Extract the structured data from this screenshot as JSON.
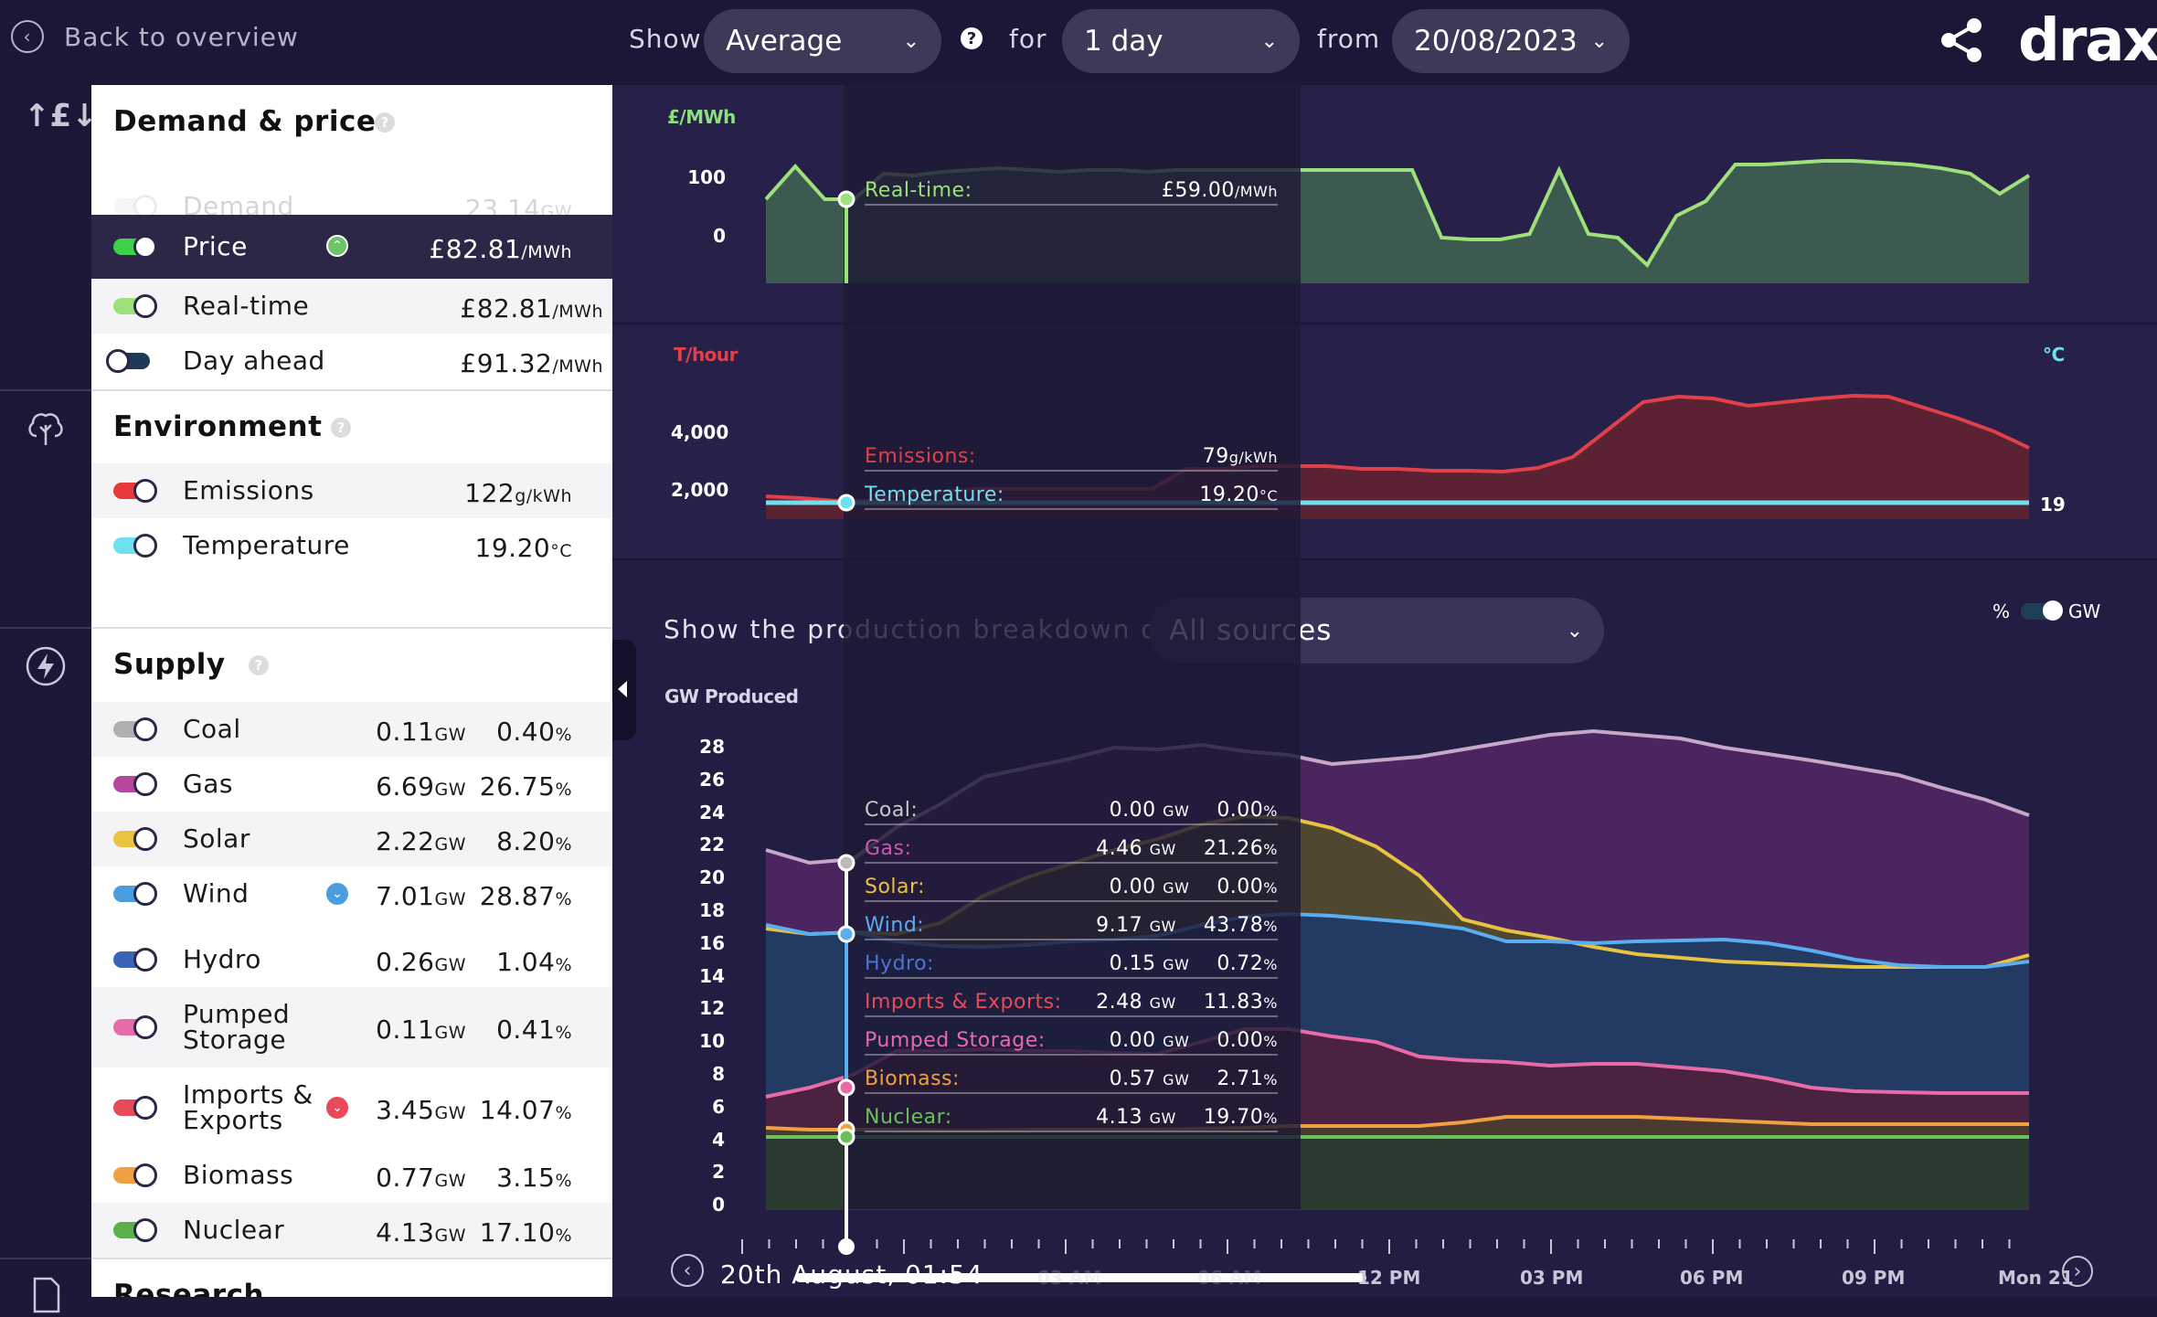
{
  "topbar": {
    "back_label": "Back to overview",
    "show_label": "Show",
    "show_value": "Average",
    "for_label": "for",
    "for_value": "1 day",
    "from_label": "from",
    "from_value": "20/08/2023",
    "logo": "drax"
  },
  "demand_price": {
    "title": "Demand & price",
    "rows": [
      {
        "label": "Demand",
        "value": "23.14",
        "unit": "GW"
      },
      {
        "label": "Price",
        "value": "£82.81",
        "unit": "/MWh"
      },
      {
        "label": "Real-time",
        "value": "£82.81",
        "unit": "/MWh"
      },
      {
        "label": "Day ahead",
        "value": "£91.32",
        "unit": "/MWh"
      }
    ]
  },
  "environment": {
    "title": "Environment",
    "rows": [
      {
        "label": "Emissions",
        "value": "122",
        "unit": "g/kWh"
      },
      {
        "label": "Temperature",
        "value": "19.20",
        "unit": "°C"
      }
    ]
  },
  "supply": {
    "title": "Supply",
    "rows": [
      {
        "label": "Coal",
        "gw": "0.11",
        "pct": "0.40",
        "color": "#b0b0b0"
      },
      {
        "label": "Gas",
        "gw": "6.69",
        "pct": "26.75",
        "color": "#b6469e"
      },
      {
        "label": "Solar",
        "gw": "2.22",
        "pct": "8.20",
        "color": "#e8c240"
      },
      {
        "label": "Wind",
        "gw": "7.01",
        "pct": "28.87",
        "color": "#4a9ee0"
      },
      {
        "label": "Hydro",
        "gw": "0.26",
        "pct": "1.04",
        "color": "#3a64b8"
      },
      {
        "label": "Pumped",
        "label2": "Storage",
        "gw": "0.11",
        "pct": "0.41",
        "color": "#e86aa8"
      },
      {
        "label": "Imports &",
        "label2": "Exports",
        "gw": "3.45",
        "pct": "14.07",
        "color": "#e84a5a"
      },
      {
        "label": "Biomass",
        "gw": "0.77",
        "pct": "3.15",
        "color": "#f0a040"
      },
      {
        "label": "Nuclear",
        "gw": "4.13",
        "pct": "17.10",
        "color": "#5ab04a"
      }
    ],
    "unit_gw": "GW",
    "unit_pct": "%"
  },
  "research_title": "Research",
  "price_chart": {
    "unit": "£/MWh",
    "ticks": [
      "100",
      "0"
    ],
    "tooltip_label": "Real-time:",
    "tooltip_value": "£59.00",
    "tooltip_unit": "/MWh"
  },
  "env_chart": {
    "unit_left": "T/hour",
    "unit_right": "°C",
    "ticks": [
      "4,000",
      "2,000"
    ],
    "right_tick": "19",
    "tooltips": [
      {
        "label": "Emissions:",
        "value": "79",
        "unit": "g/kWh",
        "color": "#e0404a"
      },
      {
        "label": "Temperature:",
        "value": "19.20",
        "unit": "°C",
        "color": "#6fe0ef"
      }
    ]
  },
  "supply_chart": {
    "breakdown_label": "Show the production breakdown of",
    "source_value": "All sources",
    "toggle_pct": "%",
    "toggle_gw": "GW",
    "unit": "GW Produced",
    "ticks": [
      "28",
      "26",
      "24",
      "22",
      "20",
      "18",
      "16",
      "14",
      "12",
      "10",
      "8",
      "6",
      "4",
      "2",
      "0"
    ],
    "tooltips": [
      {
        "label": "Coal:",
        "gw": "0.00",
        "pct": "0.00",
        "color": "#c8c8c8"
      },
      {
        "label": "Gas:",
        "gw": "4.46",
        "pct": "21.26",
        "color": "#c65aae"
      },
      {
        "label": "Solar:",
        "gw": "0.00",
        "pct": "0.00",
        "color": "#e8c240"
      },
      {
        "label": "Wind:",
        "gw": "9.17",
        "pct": "43.78",
        "color": "#5aaef0"
      },
      {
        "label": "Hydro:",
        "gw": "0.15",
        "pct": "0.72",
        "color": "#4a74d8"
      },
      {
        "label": "Imports & Exports:",
        "gw": "2.48",
        "pct": "11.83",
        "color": "#e84a5a"
      },
      {
        "label": "Pumped Storage:",
        "gw": "0.00",
        "pct": "0.00",
        "color": "#e86aa8"
      },
      {
        "label": "Biomass:",
        "gw": "0.57",
        "pct": "2.71",
        "color": "#f0a040"
      },
      {
        "label": "Nuclear:",
        "gw": "4.13",
        "pct": "19.70",
        "color": "#6ac05a"
      }
    ],
    "tooltip_gw_unit": "GW",
    "tooltip_pct_unit": "%"
  },
  "timeline": {
    "current": "20th August, 01:54",
    "labels": [
      "03 AM",
      "06 AM",
      "12 PM",
      "03 PM",
      "06 PM",
      "09 PM",
      "Mon 21"
    ]
  }
}
